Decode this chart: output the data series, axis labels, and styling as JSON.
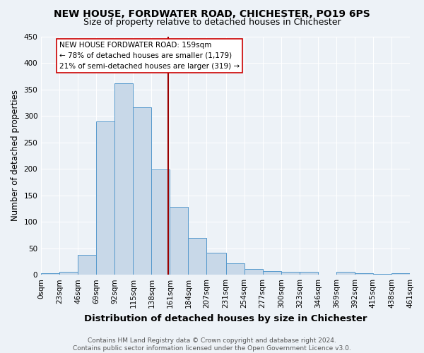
{
  "title": "NEW HOUSE, FORDWATER ROAD, CHICHESTER, PO19 6PS",
  "subtitle": "Size of property relative to detached houses in Chichester",
  "xlabel": "Distribution of detached houses by size in Chichester",
  "ylabel": "Number of detached properties",
  "bar_edges": [
    0,
    23,
    46,
    69,
    92,
    115,
    138,
    161,
    184,
    207,
    231,
    254,
    277,
    300,
    323,
    346,
    369,
    392,
    415,
    438,
    461
  ],
  "bar_heights": [
    3,
    5,
    37,
    289,
    362,
    316,
    199,
    128,
    70,
    42,
    22,
    11,
    7,
    5,
    5,
    0,
    6,
    3,
    2,
    3
  ],
  "bar_color": "#c8d8e8",
  "bar_edge_color": "#5599cc",
  "vline_x": 159,
  "vline_color": "#990000",
  "annotation_text": "NEW HOUSE FORDWATER ROAD: 159sqm\n← 78% of detached houses are smaller (1,179)\n21% of semi-detached houses are larger (319) →",
  "annotation_box_color": "#ffffff",
  "annotation_box_edge_color": "#cc0000",
  "ylim": [
    0,
    450
  ],
  "yticks": [
    0,
    50,
    100,
    150,
    200,
    250,
    300,
    350,
    400,
    450
  ],
  "tick_labels": [
    "0sqm",
    "23sqm",
    "46sqm",
    "69sqm",
    "92sqm",
    "115sqm",
    "138sqm",
    "161sqm",
    "184sqm",
    "207sqm",
    "231sqm",
    "254sqm",
    "277sqm",
    "300sqm",
    "323sqm",
    "346sqm",
    "369sqm",
    "392sqm",
    "415sqm",
    "438sqm",
    "461sqm"
  ],
  "background_color": "#edf2f7",
  "grid_color": "#ffffff",
  "footer_text": "Contains HM Land Registry data © Crown copyright and database right 2024.\nContains public sector information licensed under the Open Government Licence v3.0.",
  "title_fontsize": 10,
  "subtitle_fontsize": 9,
  "xlabel_fontsize": 9.5,
  "ylabel_fontsize": 8.5,
  "tick_fontsize": 7.5,
  "footer_fontsize": 6.5,
  "annot_fontsize": 7.5
}
